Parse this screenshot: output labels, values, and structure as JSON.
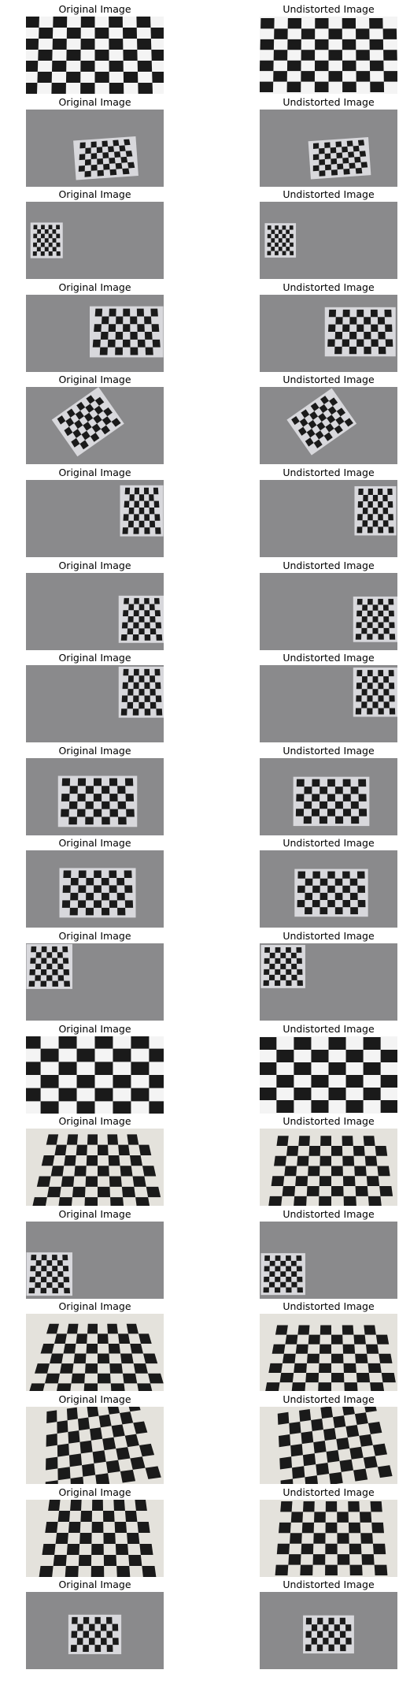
{
  "figure": {
    "background": "#ffffff",
    "board_dark": "#1a1a1a",
    "board_light": "#f2f2f2",
    "rows": [
      {
        "original_title": "Original Image",
        "undistorted_title": "Undistorted Image",
        "scene": "closeup-white",
        "board": {
          "cols": 10,
          "rows": 7,
          "skew": 0.04,
          "rot": 0
        }
      },
      {
        "original_title": "Original Image",
        "undistorted_title": "Undistorted Image",
        "scene": "gray",
        "board": {
          "cols": 9,
          "rows": 6,
          "skew": 0.15,
          "rot": -4
        }
      },
      {
        "original_title": "Original Image",
        "undistorted_title": "Undistorted Image",
        "scene": "gray",
        "board": {
          "cols": 7,
          "rows": 7,
          "skew": 0.05,
          "rot": 0
        }
      },
      {
        "original_title": "Original Image",
        "undistorted_title": "Undistorted Image",
        "scene": "gray",
        "board": {
          "cols": 9,
          "rows": 6,
          "skew": 0.1,
          "rot": 0
        }
      },
      {
        "original_title": "Original Image",
        "undistorted_title": "Undistorted Image",
        "scene": "gray",
        "board": {
          "cols": 8,
          "rows": 6,
          "skew": 0.1,
          "rot": -35
        }
      },
      {
        "original_title": "Original Image",
        "undistorted_title": "Undistorted Image",
        "scene": "gray",
        "board": {
          "cols": 7,
          "rows": 7,
          "skew": 0.15,
          "rot": 0
        }
      },
      {
        "original_title": "Original Image",
        "undistorted_title": "Undistorted Image",
        "scene": "gray",
        "board": {
          "cols": 7,
          "rows": 7,
          "skew": 0.15,
          "rot": 0
        }
      },
      {
        "original_title": "Original Image",
        "undistorted_title": "Undistorted Image",
        "scene": "gray",
        "board": {
          "cols": 7,
          "rows": 7,
          "skew": 0.12,
          "rot": 0
        }
      },
      {
        "original_title": "Original Image",
        "undistorted_title": "Undistorted Image",
        "scene": "gray",
        "board": {
          "cols": 9,
          "rows": 6,
          "skew": 0.05,
          "rot": 0
        }
      },
      {
        "original_title": "Original Image",
        "undistorted_title": "Undistorted Image",
        "scene": "gray",
        "board": {
          "cols": 9,
          "rows": 6,
          "skew": 0.05,
          "rot": 0
        }
      },
      {
        "original_title": "Original Image",
        "undistorted_title": "Undistorted Image",
        "scene": "gray",
        "board": {
          "cols": 7,
          "rows": 7,
          "skew": 0.12,
          "rot": 0
        }
      },
      {
        "original_title": "Original Image",
        "undistorted_title": "Undistorted Image",
        "scene": "closeup-white",
        "board": {
          "cols": 8,
          "rows": 6,
          "skew": 0.0,
          "rot": 0
        }
      },
      {
        "original_title": "Original Image",
        "undistorted_title": "Undistorted Image",
        "scene": "white-wall",
        "board": {
          "cols": 10,
          "rows": 7,
          "skew": 0.25,
          "rot": 0
        }
      },
      {
        "original_title": "Original Image",
        "undistorted_title": "Undistorted Image",
        "scene": "gray",
        "board": {
          "cols": 7,
          "rows": 7,
          "skew": 0.12,
          "rot": 0
        }
      },
      {
        "original_title": "Original Image",
        "undistorted_title": "Undistorted Image",
        "scene": "white-wall",
        "board": {
          "cols": 10,
          "rows": 7,
          "skew": 0.3,
          "rot": 0
        }
      },
      {
        "original_title": "Original Image",
        "undistorted_title": "Undistorted Image",
        "scene": "white-wall",
        "board": {
          "cols": 9,
          "rows": 7,
          "skew": 0.22,
          "rot": -8
        }
      },
      {
        "original_title": "Original Image",
        "undistorted_title": "Undistorted Image",
        "scene": "white-wall",
        "board": {
          "cols": 9,
          "rows": 7,
          "skew": 0.18,
          "rot": 0
        }
      },
      {
        "original_title": "Original Image",
        "undistorted_title": "Undistorted Image",
        "scene": "gray",
        "board": {
          "cols": 8,
          "rows": 5,
          "skew": 0.05,
          "rot": 0
        }
      }
    ]
  }
}
